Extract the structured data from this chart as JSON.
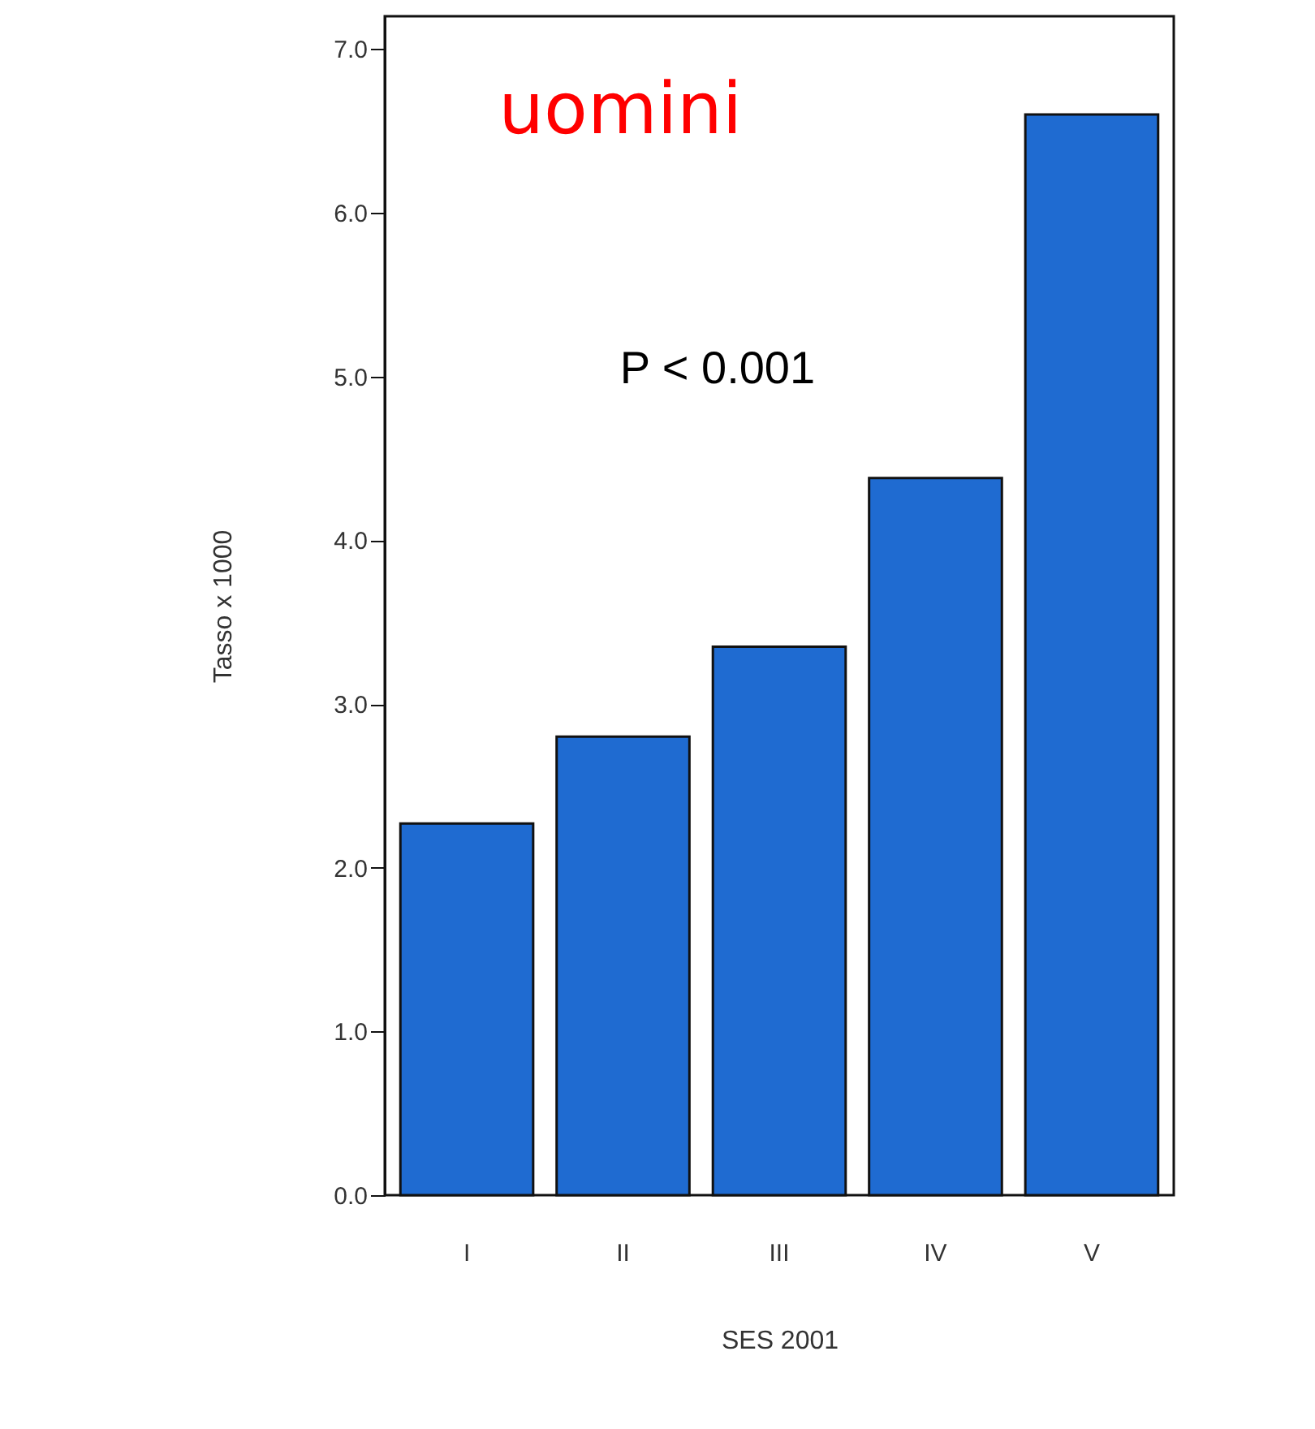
{
  "chart_data": {
    "type": "bar",
    "title": "uomini",
    "xlabel": "SES 2001",
    "ylabel": "Tasso x 1000",
    "categories": [
      "I",
      "II",
      "III",
      "IV",
      "V"
    ],
    "values": [
      2.27,
      2.8,
      3.35,
      4.38,
      6.6
    ],
    "color": "#1f6bd1",
    "ylim": [
      0,
      7.2
    ],
    "yticks": [
      {
        "value": 0,
        "label": "0.0"
      },
      {
        "value": 1,
        "label": "1.0"
      },
      {
        "value": 2,
        "label": "2.0"
      },
      {
        "value": 3,
        "label": "3.0"
      },
      {
        "value": 4,
        "label": "4.0"
      },
      {
        "value": 5,
        "label": "5.0"
      },
      {
        "value": 6,
        "label": "6.0"
      },
      {
        "value": 7,
        "label": "7.0"
      }
    ],
    "annotations": [
      "P < 0.001"
    ],
    "grid": false
  }
}
